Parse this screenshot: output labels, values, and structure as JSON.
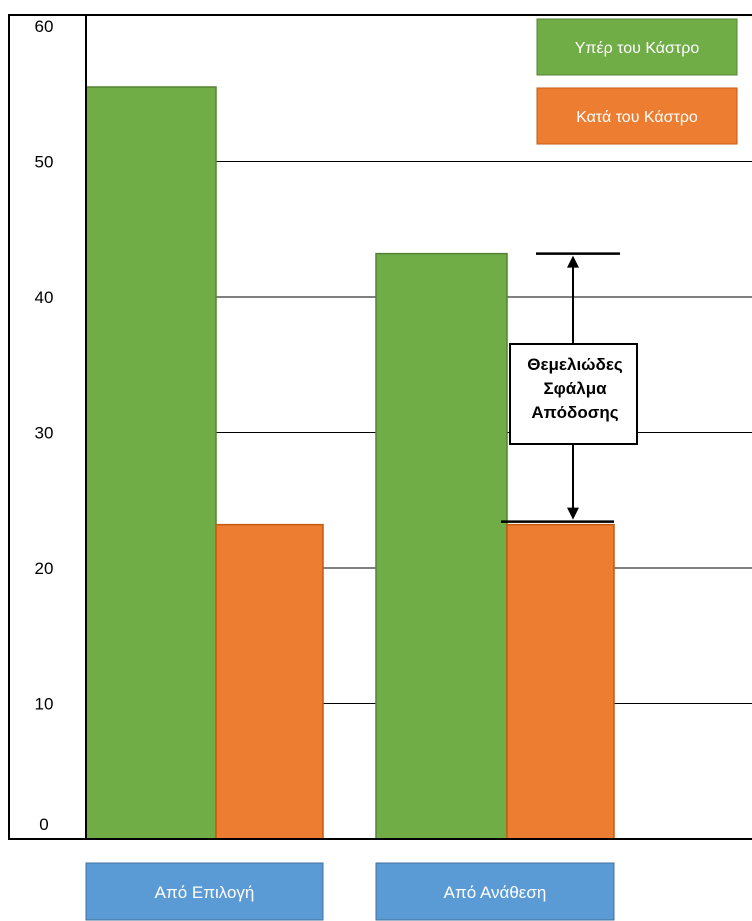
{
  "chart_data": {
    "type": "bar",
    "categories": [
      "Από Επιλογή",
      "Από Ανάθεση"
    ],
    "series": [
      {
        "name": "Υπέρ του Κάστρο",
        "values": [
          55.5,
          43.2
        ]
      },
      {
        "name": "Κατά του Κάστρο",
        "values": [
          23.2,
          23.2
        ]
      }
    ],
    "y_ticks": [
      0,
      10,
      20,
      30,
      40,
      50,
      60
    ],
    "ylim": [
      0,
      60
    ],
    "grid": true,
    "legend_position": "top-right",
    "annotation": {
      "lines": [
        "Θεμελιώδες",
        "Σφάλμα",
        "Απόδοσης"
      ],
      "from_value": 23.2,
      "to_value": 43.2
    }
  },
  "colors": {
    "series_0": "#70ad47",
    "series_0_edge": "#548235",
    "series_1": "#ed7d31",
    "series_1_edge": "#c55a11",
    "category_box": "#5b9bd5",
    "category_box_edge": "#41719c",
    "grid": "#000000"
  }
}
